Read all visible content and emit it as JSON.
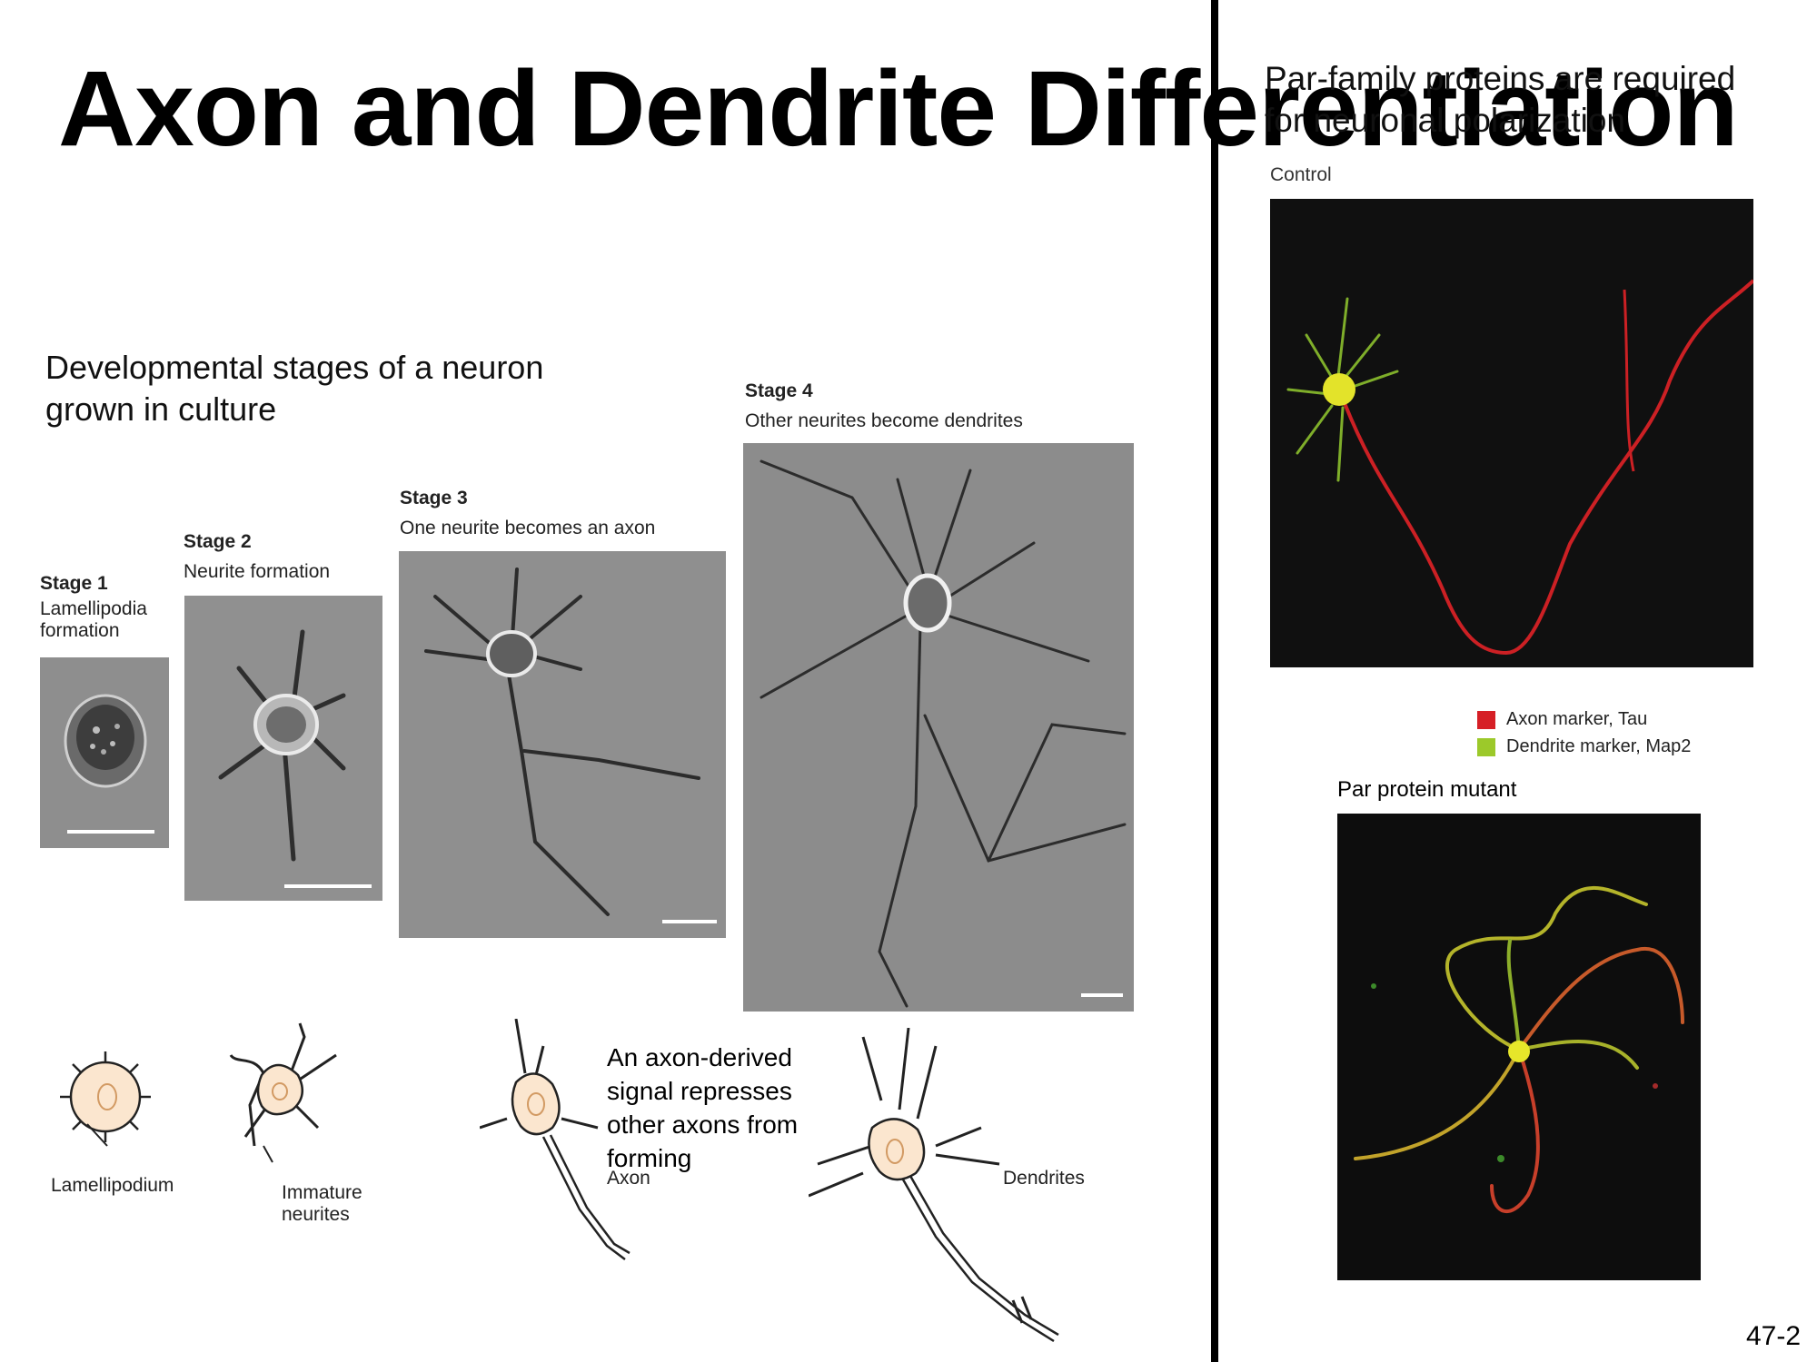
{
  "title": "Axon and Dendrite Differentiation",
  "subtitle": "Developmental stages of a neuron grown in culture",
  "stages": [
    {
      "name": "Stage 1",
      "desc": "Lamellipodia formation"
    },
    {
      "name": "Stage 2",
      "desc": "Neurite formation"
    },
    {
      "name": "Stage 3",
      "desc": "One neurite becomes an axon"
    },
    {
      "name": "Stage 4",
      "desc": "Other neurites become dendrites"
    }
  ],
  "drawing_labels": {
    "lamellipodium": "Lamellipodium",
    "immature_neurites": "Immature neurites",
    "axon": "Axon",
    "dendrites": "Dendrites"
  },
  "callout": "An axon-derived signal represses other axons from forming",
  "right_title": "Par-family proteins are required for neuronal polarization",
  "control_label": "Control",
  "mutant_label": "Par protein mutant",
  "legend": [
    {
      "label": "Axon marker, Tau",
      "color": "#d61f26"
    },
    {
      "label": "Dendrite marker, Map2",
      "color": "#9cc92a"
    }
  ],
  "page_number": "47-2"
}
